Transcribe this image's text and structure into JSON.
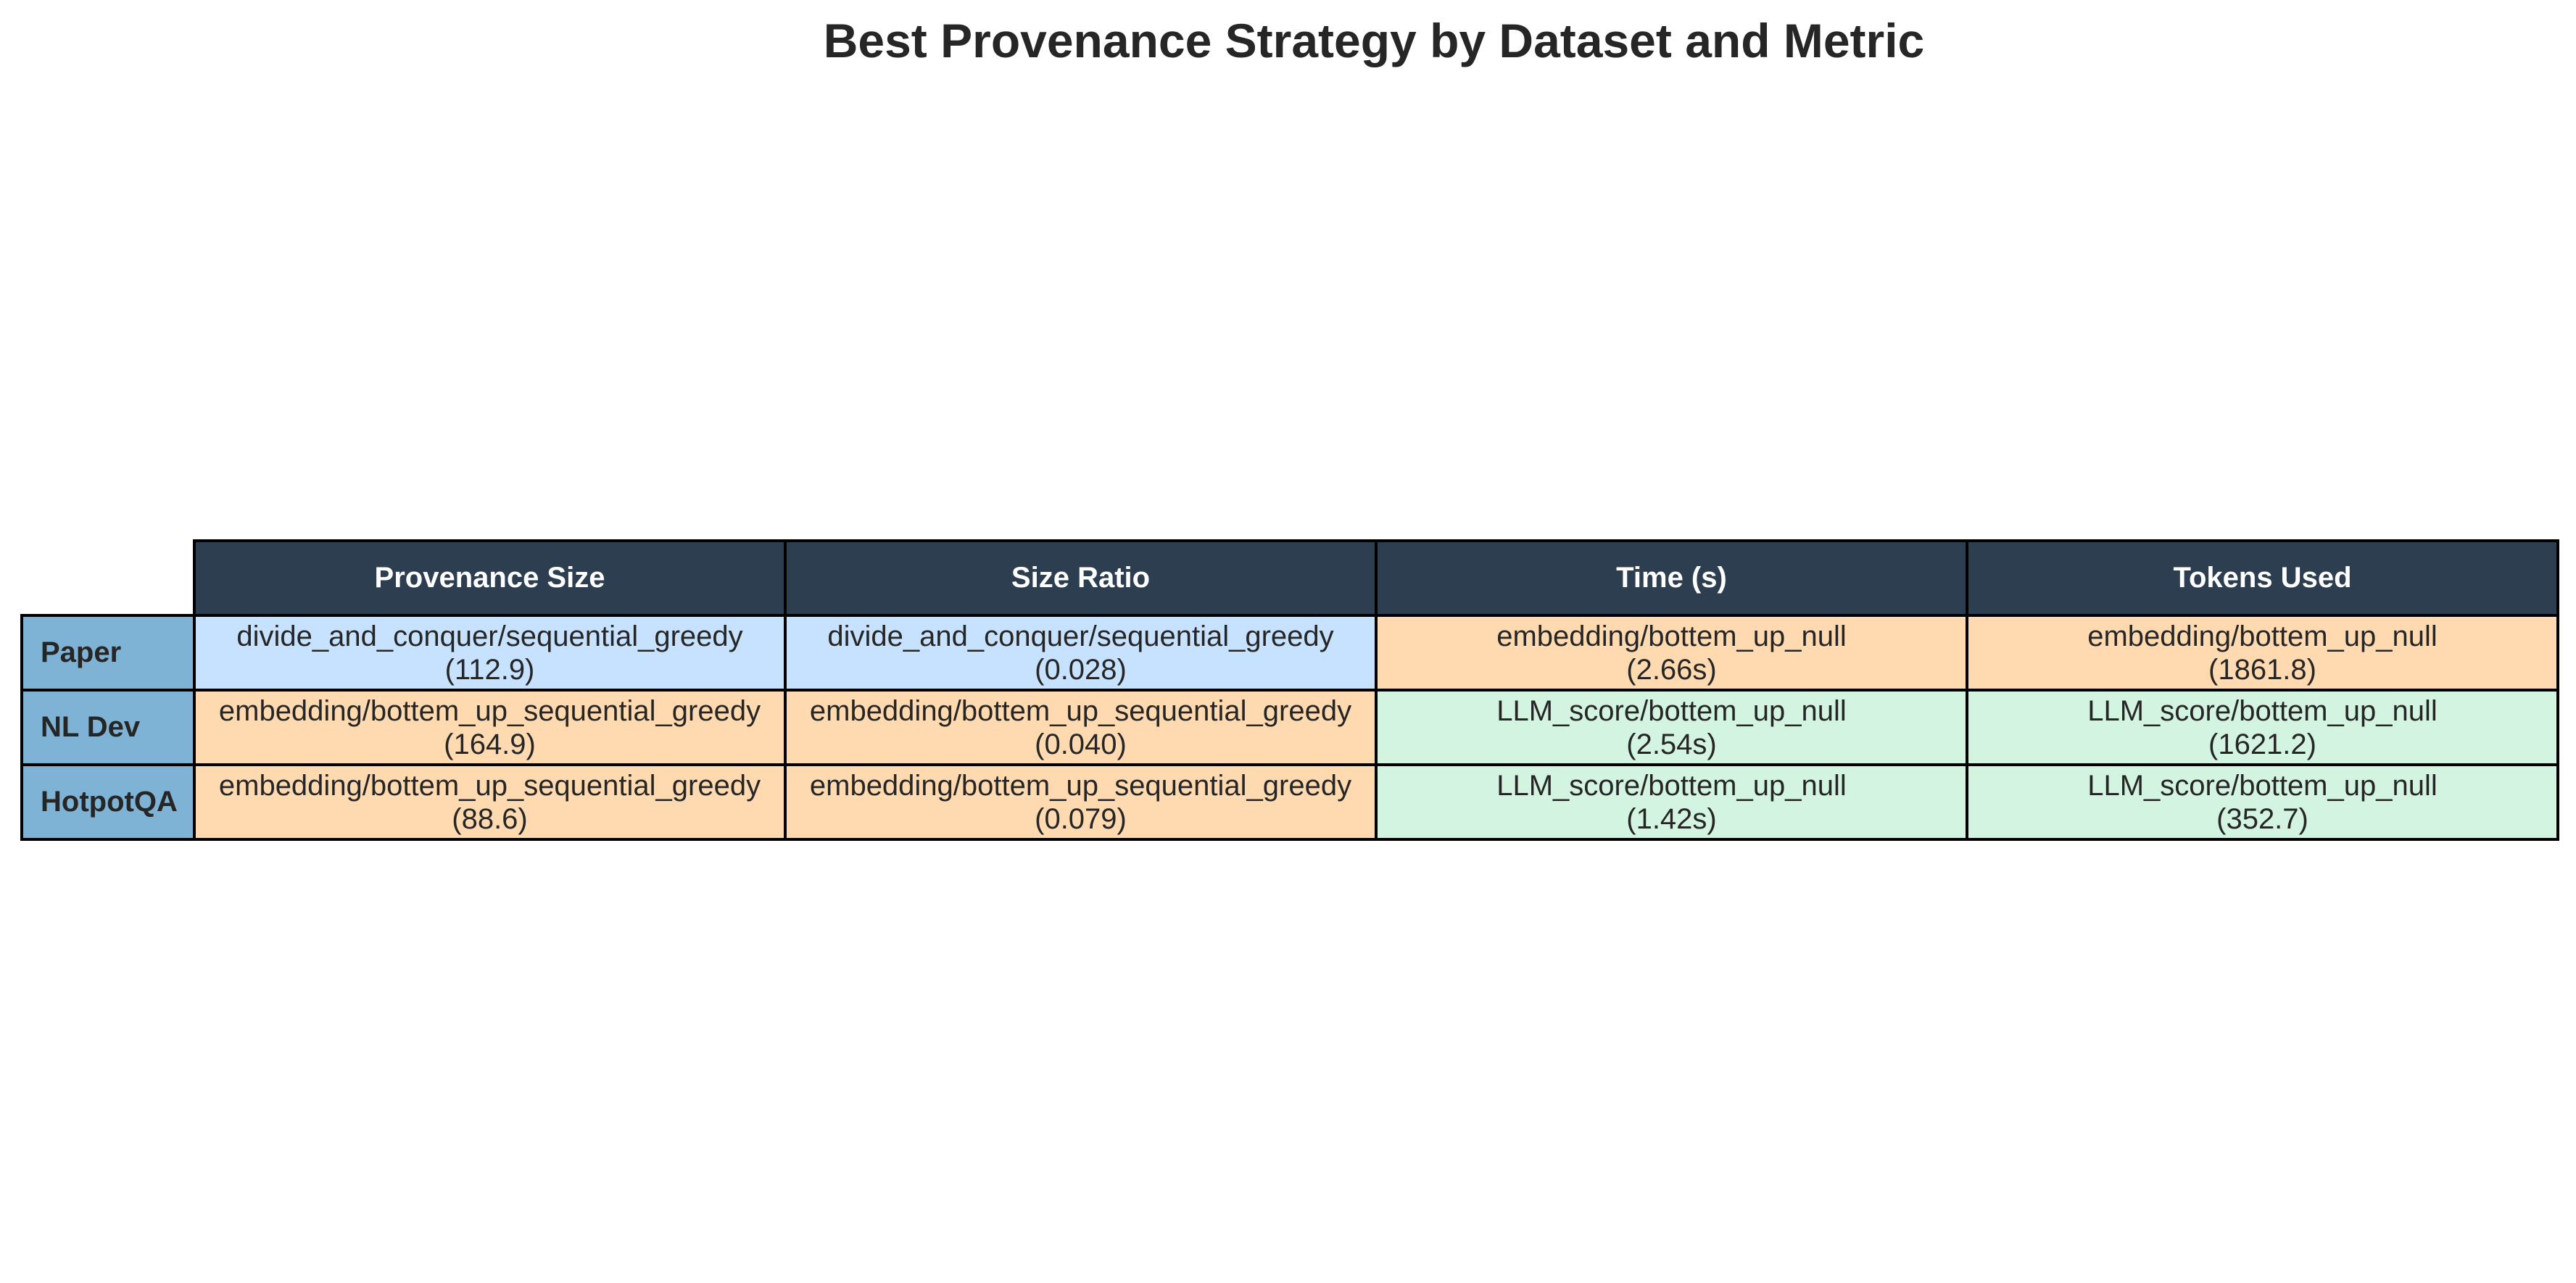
{
  "chart_data": {
    "type": "table",
    "title": "Best Provenance Strategy by Dataset and Metric",
    "columns": [
      "Provenance Size",
      "Size Ratio",
      "Time (s)",
      "Tokens Used"
    ],
    "rows": [
      {
        "label": "Paper",
        "cells": [
          {
            "strategy": "divide_and_conquer/sequential_greedy",
            "value": "(112.9)",
            "color": "#c6e2ff"
          },
          {
            "strategy": "divide_and_conquer/sequential_greedy",
            "value": "(0.028)",
            "color": "#c6e2ff"
          },
          {
            "strategy": "embedding/bottem_up_null",
            "value": "(2.66s)",
            "color": "#ffdab0"
          },
          {
            "strategy": "embedding/bottem_up_null",
            "value": "(1861.8)",
            "color": "#ffdab0"
          }
        ]
      },
      {
        "label": "NL Dev",
        "cells": [
          {
            "strategy": "embedding/bottem_up_sequential_greedy",
            "value": "(164.9)",
            "color": "#ffdab0"
          },
          {
            "strategy": "embedding/bottem_up_sequential_greedy",
            "value": "(0.040)",
            "color": "#ffdab0"
          },
          {
            "strategy": "LLM_score/bottem_up_null",
            "value": "(2.54s)",
            "color": "#d3f4e1"
          },
          {
            "strategy": "LLM_score/bottem_up_null",
            "value": "(1621.2)",
            "color": "#d3f4e1"
          }
        ]
      },
      {
        "label": "HotpotQA",
        "cells": [
          {
            "strategy": "embedding/bottem_up_sequential_greedy",
            "value": "(88.6)",
            "color": "#ffdab0"
          },
          {
            "strategy": "embedding/bottem_up_sequential_greedy",
            "value": "(0.079)",
            "color": "#ffdab0"
          },
          {
            "strategy": "LLM_score/bottem_up_null",
            "value": "(1.42s)",
            "color": "#d3f4e1"
          },
          {
            "strategy": "LLM_score/bottem_up_null",
            "value": "(352.7)",
            "color": "#d3f4e1"
          }
        ]
      }
    ],
    "colors": {
      "header_background": "#2c3e50",
      "header_text": "#ffffff",
      "row_header_background": "#7fb3d5",
      "divide_and_conquer": "#c6e2ff",
      "embedding": "#ffdab0",
      "llm_score": "#d3f4e1"
    }
  }
}
